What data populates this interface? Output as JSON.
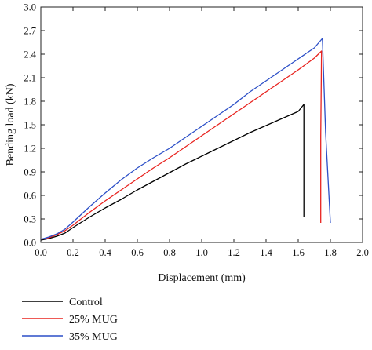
{
  "chart_data": {
    "type": "line",
    "title": "",
    "xlabel": "Displacement (mm)",
    "ylabel": "Bending load (kN)",
    "xlim": [
      0.0,
      2.0
    ],
    "ylim": [
      0.0,
      3.0
    ],
    "xticks": [
      "0.0",
      "0.2",
      "0.4",
      "0.6",
      "0.8",
      "1.0",
      "1.2",
      "1.4",
      "1.6",
      "1.8",
      "2.0"
    ],
    "yticks": [
      "0.0",
      "0.3",
      "0.6",
      "0.9",
      "1.2",
      "1.5",
      "1.8",
      "2.1",
      "2.4",
      "2.7",
      "3.0"
    ],
    "grid": false,
    "legend_position": "bottom-left, below plot",
    "series": [
      {
        "name": "Control",
        "color": "#000000",
        "x": [
          0.0,
          0.05,
          0.1,
          0.15,
          0.2,
          0.3,
          0.4,
          0.5,
          0.6,
          0.7,
          0.8,
          0.9,
          1.0,
          1.1,
          1.2,
          1.3,
          1.4,
          1.5,
          1.6,
          1.635,
          1.635,
          1.635
        ],
        "y": [
          0.03,
          0.05,
          0.08,
          0.12,
          0.19,
          0.32,
          0.44,
          0.55,
          0.67,
          0.78,
          0.89,
          1.0,
          1.1,
          1.2,
          1.3,
          1.4,
          1.49,
          1.58,
          1.67,
          1.76,
          1.05,
          0.33
        ]
      },
      {
        "name": "25% MUG",
        "color": "#e8231f",
        "x": [
          0.0,
          0.05,
          0.1,
          0.15,
          0.2,
          0.3,
          0.4,
          0.5,
          0.6,
          0.7,
          0.8,
          0.9,
          1.0,
          1.1,
          1.2,
          1.3,
          1.4,
          1.5,
          1.6,
          1.7,
          1.745,
          1.74,
          1.74
        ],
        "y": [
          0.04,
          0.06,
          0.1,
          0.15,
          0.22,
          0.38,
          0.53,
          0.67,
          0.81,
          0.95,
          1.08,
          1.22,
          1.36,
          1.5,
          1.64,
          1.78,
          1.92,
          2.06,
          2.2,
          2.35,
          2.44,
          1.35,
          0.25
        ]
      },
      {
        "name": "35% MUG",
        "color": "#2c4fc7",
        "x": [
          0.0,
          0.05,
          0.1,
          0.15,
          0.2,
          0.3,
          0.4,
          0.5,
          0.6,
          0.7,
          0.8,
          0.9,
          1.0,
          1.1,
          1.2,
          1.3,
          1.4,
          1.5,
          1.6,
          1.7,
          1.75,
          1.77,
          1.8
        ],
        "y": [
          0.04,
          0.07,
          0.11,
          0.17,
          0.26,
          0.45,
          0.63,
          0.8,
          0.95,
          1.08,
          1.2,
          1.34,
          1.48,
          1.62,
          1.76,
          1.92,
          2.06,
          2.2,
          2.34,
          2.48,
          2.6,
          1.4,
          0.25
        ]
      }
    ]
  }
}
